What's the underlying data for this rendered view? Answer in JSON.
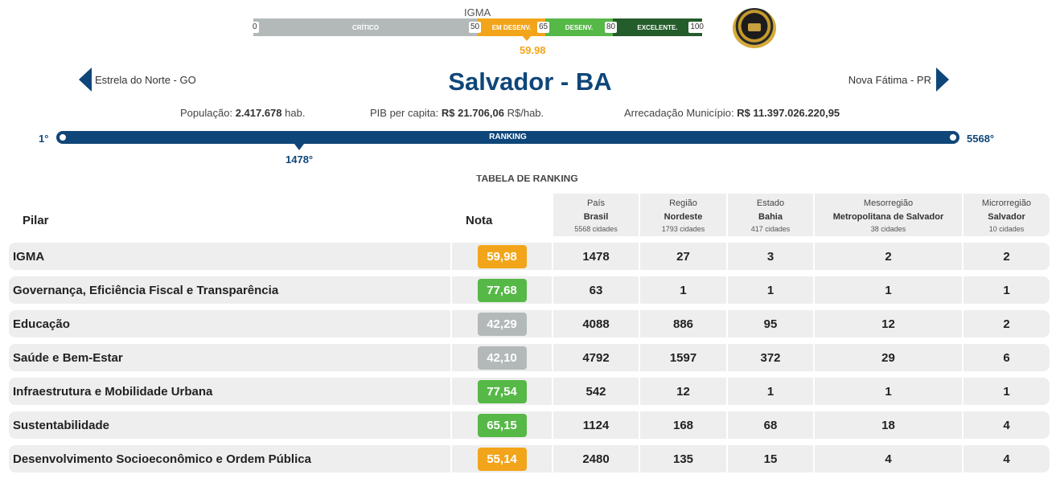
{
  "gauge": {
    "label": "IGMA",
    "segments": [
      {
        "label": "CRÍTICO",
        "color": "#b3b9b9"
      },
      {
        "label": "EM DESENV.",
        "color": "#f2a51a"
      },
      {
        "label": "DESENV.",
        "color": "#56b847"
      },
      {
        "label": "EXCELENTE.",
        "color": "#245c2b"
      }
    ],
    "ticks": [
      "0",
      "50",
      "65",
      "80",
      "100"
    ],
    "value": "59.98",
    "value_color": "#f2a51a"
  },
  "seal_icon": "gold-seal-icon",
  "city": {
    "title": "Salvador - BA",
    "prev": "Estrela do Norte - GO",
    "next": "Nova Fátima - PR"
  },
  "stats": {
    "pop_label": "População:",
    "pop_value": "2.417.678",
    "pop_unit": "hab.",
    "pib_label": "PIB per capita:",
    "pib_value": "R$ 21.706,06",
    "pib_unit": "R$/hab.",
    "arr_label": "Arrecadação Município:",
    "arr_value": "R$ 11.397.026.220,95"
  },
  "ranking": {
    "min": "1°",
    "max": "5568°",
    "label": "RANKING",
    "position": "1478°"
  },
  "table": {
    "caption": "TABELA DE RANKING",
    "pilar_header": "Pilar",
    "nota_header": "Nota",
    "columns": [
      {
        "l1": "País",
        "l2": "Brasil",
        "l3": "5568 cidades"
      },
      {
        "l1": "Região",
        "l2": "Nordeste",
        "l3": "1793 cidades"
      },
      {
        "l1": "Estado",
        "l2": "Bahia",
        "l3": "417 cidades"
      },
      {
        "l1": "Mesorregião",
        "l2": "Metropolitana de Salvador",
        "l3": "38 cidades"
      },
      {
        "l1": "Microrregião",
        "l2": "Salvador",
        "l3": "10 cidades"
      }
    ],
    "rows": [
      {
        "pilar": "IGMA",
        "nota": "59,98",
        "color": "#f2a51a",
        "ranks": [
          "1478",
          "27",
          "3",
          "2",
          "2"
        ]
      },
      {
        "pilar": "Governança, Eficiência Fiscal e Transparência",
        "nota": "77,68",
        "color": "#56b847",
        "ranks": [
          "63",
          "1",
          "1",
          "1",
          "1"
        ]
      },
      {
        "pilar": "Educação",
        "nota": "42,29",
        "color": "#b3b9b9",
        "ranks": [
          "4088",
          "886",
          "95",
          "12",
          "2"
        ]
      },
      {
        "pilar": "Saúde e Bem-Estar",
        "nota": "42,10",
        "color": "#b3b9b9",
        "ranks": [
          "4792",
          "1597",
          "372",
          "29",
          "6"
        ]
      },
      {
        "pilar": "Infraestrutura e Mobilidade Urbana",
        "nota": "77,54",
        "color": "#56b847",
        "ranks": [
          "542",
          "12",
          "1",
          "1",
          "1"
        ]
      },
      {
        "pilar": "Sustentabilidade",
        "nota": "65,15",
        "color": "#56b847",
        "ranks": [
          "1124",
          "168",
          "68",
          "18",
          "4"
        ]
      },
      {
        "pilar": "Desenvolvimento Socioeconômico e Ordem Pública",
        "nota": "55,14",
        "color": "#f2a51a",
        "ranks": [
          "2480",
          "135",
          "15",
          "4",
          "4"
        ]
      }
    ]
  }
}
